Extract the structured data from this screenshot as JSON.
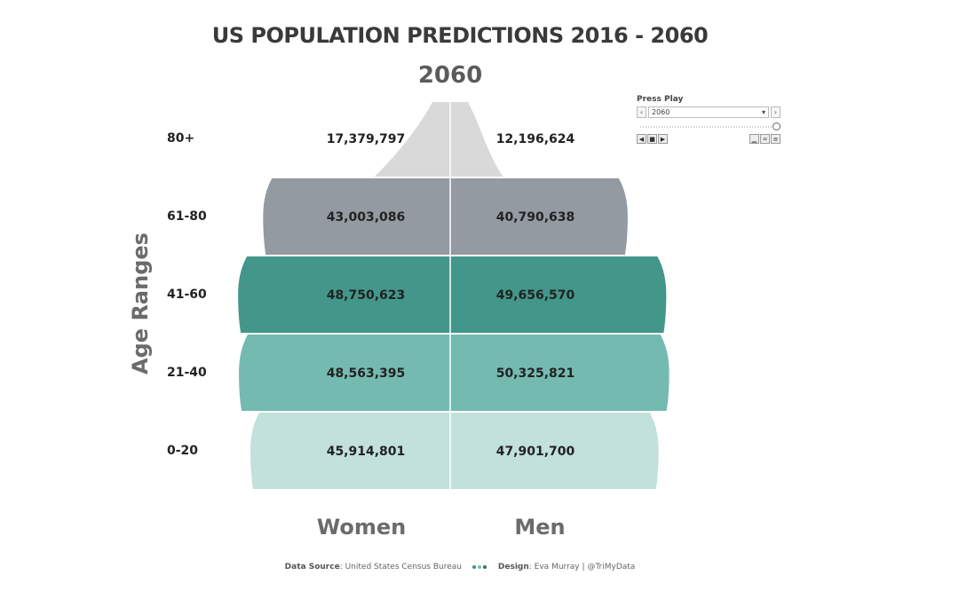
{
  "title": "US POPULATION PREDICTIONS 2016 - 2060",
  "year": "2060",
  "y_axis_label": "Age Ranges",
  "women_label": "Women",
  "men_label": "Men",
  "play_control": {
    "label": "Press Play",
    "selected": "2060",
    "prev_icon": "‹",
    "next_icon": "›",
    "dropdown_icon": "▾"
  },
  "footer": {
    "source_label": "Data Source",
    "source_value": ": United States Census Bureau",
    "design_label": "Design",
    "design_value": ": Eva Murray | @TriMyData",
    "dot_colors": [
      "#3f8f84",
      "#7bbab1",
      "#2f6f65"
    ]
  },
  "colors": {
    "80+": "#d9d9d9",
    "61-80": "#949aa1",
    "41-60": "#43968a",
    "21-40": "#74bab1",
    "0-20": "#c2e0dc"
  },
  "chart_data": {
    "type": "bar",
    "title": "US POPULATION PREDICTIONS 2016 - 2060",
    "subtitle": "2060",
    "ylabel": "Age Ranges",
    "categories": [
      "80+",
      "61-80",
      "41-60",
      "21-40",
      "0-20"
    ],
    "series": [
      {
        "name": "Women",
        "values": [
          17379797,
          43003086,
          48750623,
          48563395,
          45914801
        ]
      },
      {
        "name": "Men",
        "values": [
          12196624,
          40790638,
          49656570,
          50325821,
          47901700
        ]
      }
    ],
    "labels": {
      "Women": [
        "17,379,797",
        "43,003,086",
        "48,750,623",
        "48,563,395",
        "45,914,801"
      ],
      "Men": [
        "12,196,624",
        "40,790,638",
        "49,656,570",
        "50,325,821",
        "47,901,700"
      ]
    }
  }
}
